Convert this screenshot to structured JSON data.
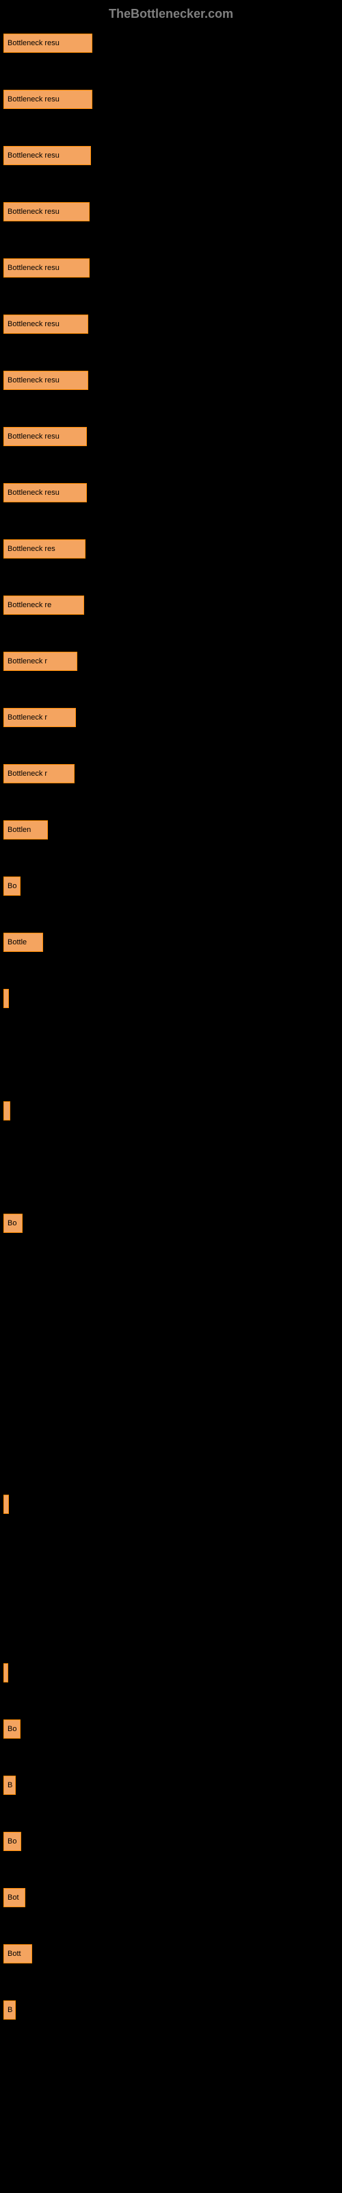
{
  "header": "TheBottlenecker.com",
  "bars": [
    {
      "label": "Bottleneck resu",
      "width": 130
    },
    {
      "label": "Bottleneck resu",
      "width": 130
    },
    {
      "label": "Bottleneck resu",
      "width": 128
    },
    {
      "label": "Bottleneck resu",
      "width": 126
    },
    {
      "label": "Bottleneck resu",
      "width": 126
    },
    {
      "label": "Bottleneck resu",
      "width": 124
    },
    {
      "label": "Bottleneck resu",
      "width": 124
    },
    {
      "label": "Bottleneck resu",
      "width": 122
    },
    {
      "label": "Bottleneck resu",
      "width": 122
    },
    {
      "label": "Bottleneck res",
      "width": 120
    },
    {
      "label": "Bottleneck re",
      "width": 118
    },
    {
      "label": "Bottleneck r",
      "width": 108
    },
    {
      "label": "Bottleneck r",
      "width": 106
    },
    {
      "label": "Bottleneck r",
      "width": 104
    },
    {
      "label": "Bottlen",
      "width": 65
    },
    {
      "label": "Bo",
      "width": 25
    },
    {
      "label": "Bottle",
      "width": 58
    },
    {
      "label": "",
      "width": 8
    },
    {
      "label": "",
      "width": 0
    },
    {
      "label": "",
      "width": 10
    },
    {
      "label": "",
      "width": 0
    },
    {
      "label": "Bo",
      "width": 28
    },
    {
      "label": "",
      "width": 0
    },
    {
      "label": "",
      "width": 0
    },
    {
      "label": "",
      "width": 0
    },
    {
      "label": "",
      "width": 0
    },
    {
      "label": "",
      "width": 8
    },
    {
      "label": "",
      "width": 0
    },
    {
      "label": "",
      "width": 0
    },
    {
      "label": "",
      "width": 6
    },
    {
      "label": "Bo",
      "width": 25
    },
    {
      "label": "B",
      "width": 18
    },
    {
      "label": "Bo",
      "width": 26
    },
    {
      "label": "Bot",
      "width": 32
    },
    {
      "label": "Bott",
      "width": 42
    },
    {
      "label": "B",
      "width": 18
    }
  ],
  "bar_color": "#f4a460",
  "border_color": "#ff8c00",
  "background_color": "#000000",
  "spacing": 54
}
